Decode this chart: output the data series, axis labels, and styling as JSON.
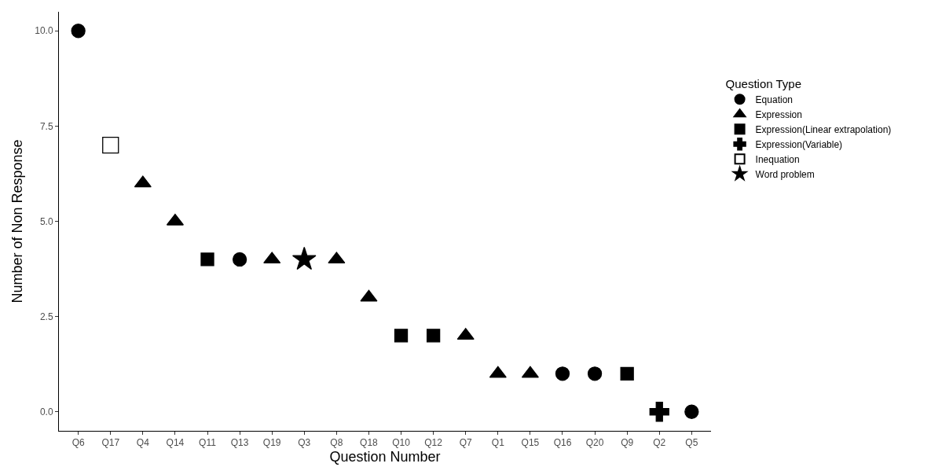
{
  "chart_data": {
    "type": "scatter",
    "xlabel": "Question Number",
    "ylabel": "Number of Non Response",
    "legend_title": "Question Type",
    "categories": [
      "Q6",
      "Q17",
      "Q4",
      "Q14",
      "Q11",
      "Q13",
      "Q19",
      "Q3",
      "Q8",
      "Q18",
      "Q10",
      "Q12",
      "Q7",
      "Q1",
      "Q15",
      "Q16",
      "Q20",
      "Q9",
      "Q2",
      "Q5"
    ],
    "series": [
      {
        "name": "Equation",
        "color": "#000000",
        "marker": "circle",
        "x": [
          "Q6",
          "Q13",
          "Q16",
          "Q20",
          "Q5"
        ],
        "values": [
          10,
          4,
          1,
          1,
          0
        ]
      },
      {
        "name": "Expression",
        "color": "#000000",
        "marker": "triangle",
        "x": [
          "Q4",
          "Q14",
          "Q19",
          "Q8",
          "Q18",
          "Q7",
          "Q1",
          "Q15"
        ],
        "values": [
          6,
          5,
          4,
          4,
          3,
          2,
          1,
          1
        ]
      },
      {
        "name": "Expression(Linear extrapolation)",
        "color": "#000000",
        "marker": "square",
        "x": [
          "Q11",
          "Q10",
          "Q12",
          "Q9"
        ],
        "values": [
          4,
          2,
          2,
          1
        ]
      },
      {
        "name": "Expression(Variable)",
        "color": "#000000",
        "marker": "cross",
        "x": [
          "Q2"
        ],
        "values": [
          0
        ]
      },
      {
        "name": "Inequation",
        "color": "#000000",
        "marker": "square",
        "x": [
          "Q17"
        ],
        "values": [
          7
        ]
      },
      {
        "name": "Word problem",
        "color": "#000000",
        "marker": "star",
        "x": [
          "Q3"
        ],
        "values": [
          4
        ]
      }
    ],
    "ylim": [
      -0.5,
      10.5
    ],
    "yticks": [
      {
        "value": 0,
        "label": "0.0"
      },
      {
        "value": 2.5,
        "label": "2.5"
      },
      {
        "value": 5,
        "label": "5.0"
      },
      {
        "value": 7.5,
        "label": "7.5"
      },
      {
        "value": 10,
        "label": "10.0"
      }
    ],
    "grid": false,
    "legend": "right"
  }
}
